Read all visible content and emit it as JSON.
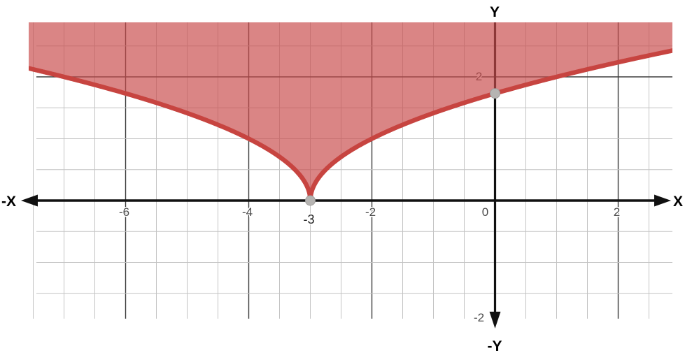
{
  "chart_data": {
    "type": "area",
    "description": "Shaded inequality region above a square-root curve with a cusp",
    "region": "y >= sqrt(|x + 3|)",
    "curve": {
      "function": "y = sqrt(|x + 3|)",
      "cusp": {
        "x": -3,
        "y": 0
      }
    },
    "points": [
      {
        "x": -3,
        "y": 0,
        "label": "-3"
      },
      {
        "x": 0,
        "y": 1.732,
        "label": ""
      }
    ],
    "x_ticks": [
      {
        "value": -6,
        "label": "-6"
      },
      {
        "value": -4,
        "label": "-4"
      },
      {
        "value": -2,
        "label": "-2"
      },
      {
        "value": 0,
        "label": "0"
      },
      {
        "value": 2,
        "label": "2"
      }
    ],
    "y_ticks": [
      {
        "value": 2,
        "label": "2"
      },
      {
        "value": -2,
        "label": "-2"
      }
    ],
    "axis_labels": {
      "x_pos": "X",
      "x_neg": "-X",
      "y_pos": "Y",
      "y_neg": "-Y"
    },
    "x_range": [
      -7.58,
      2.88
    ],
    "y_range": [
      -1.91,
      2.88
    ],
    "grid": {
      "minor_step": 0.5,
      "major_step": 2,
      "grid_on": true
    },
    "colors": {
      "curve": "#c74440",
      "fill": "#c84b4b",
      "fill_opacity": 0.68,
      "point_fill": "#b6b4b2",
      "point_edge": "#a09e9c",
      "axis": "#111111",
      "grid_minor": "#c3c3c3",
      "grid_major": "#3d3d3d",
      "tick_label": "#4a4a4a"
    }
  }
}
